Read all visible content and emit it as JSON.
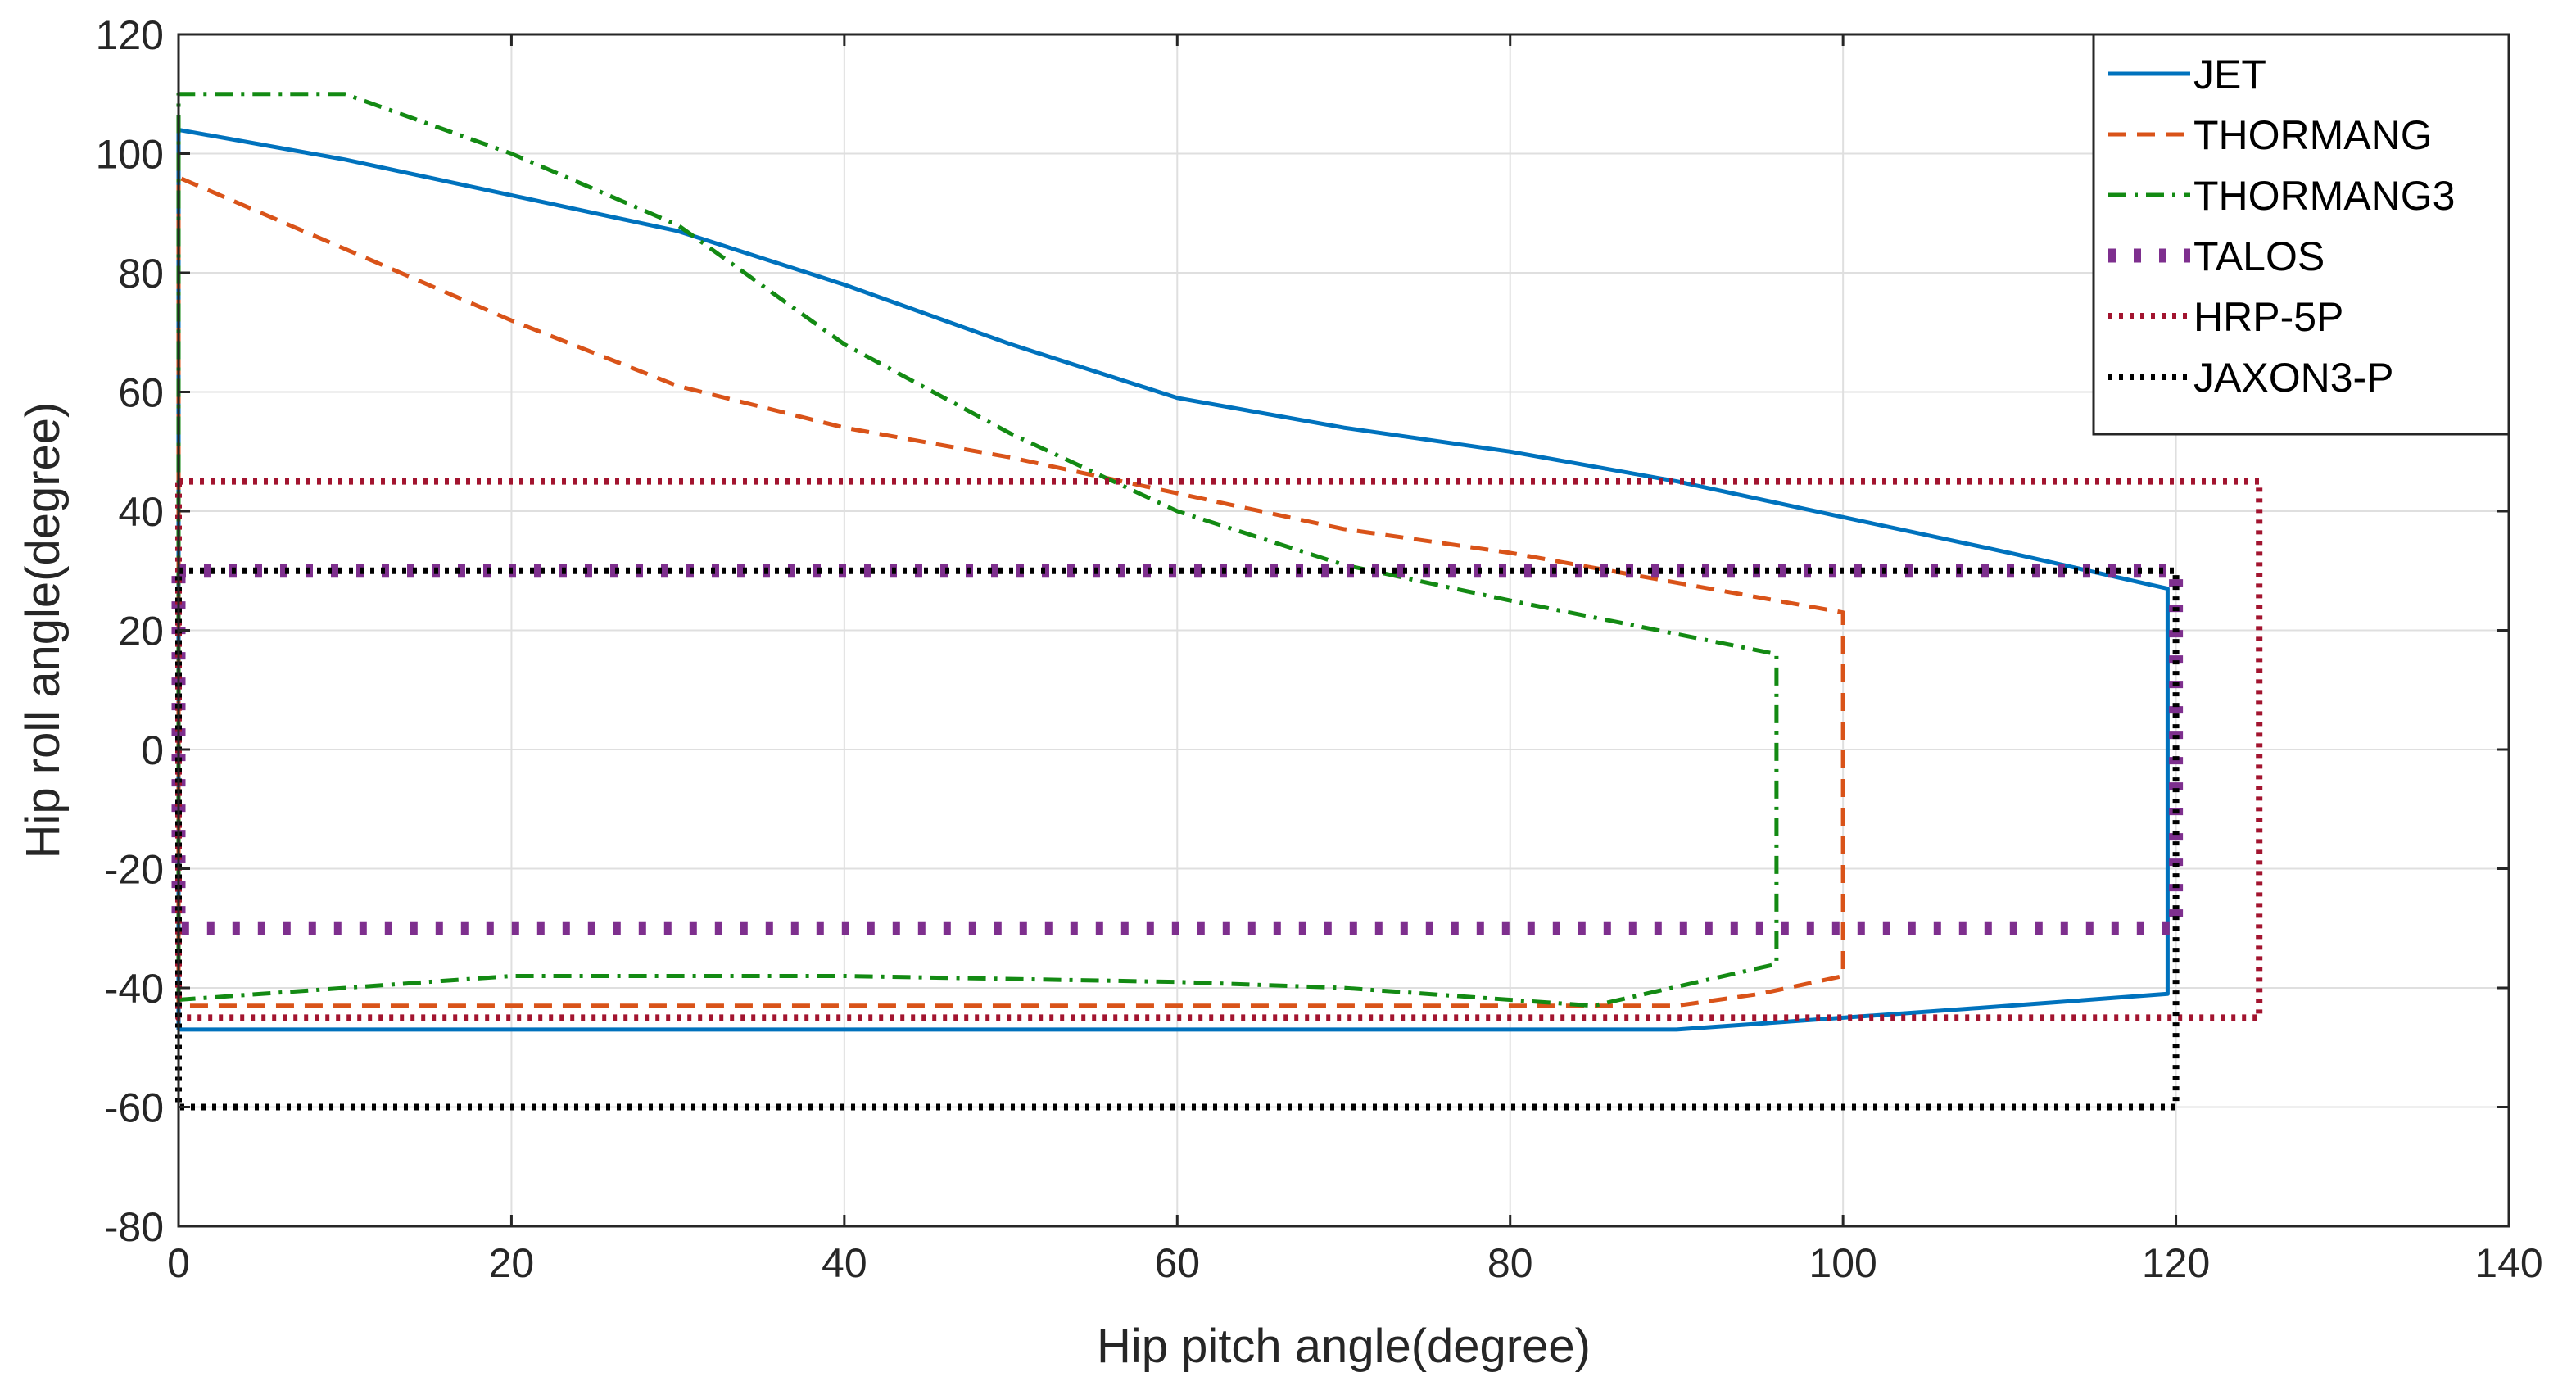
{
  "chart_data": {
    "type": "line",
    "title": "",
    "xlabel": "Hip pitch angle(degree)",
    "ylabel": "Hip roll angle(degree)",
    "xlim": [
      0,
      140
    ],
    "ylim": [
      -80,
      120
    ],
    "xticks": [
      0,
      20,
      40,
      60,
      80,
      100,
      120,
      140
    ],
    "yticks": [
      -80,
      -60,
      -40,
      -20,
      0,
      20,
      40,
      60,
      80,
      100,
      120
    ],
    "grid": true,
    "legend_position": "top-right",
    "series": [
      {
        "name": "JET",
        "color": "#0072BD",
        "style": "solid",
        "x": [
          0,
          0,
          10,
          20,
          30,
          40,
          50,
          60,
          70,
          80,
          90,
          100,
          110,
          119.5,
          119.5,
          110,
          100,
          90,
          80,
          60,
          40,
          20,
          0
        ],
        "y": [
          -47,
          104,
          99,
          93,
          87,
          78,
          68,
          59,
          54,
          50,
          45,
          39,
          33,
          27,
          -41,
          -43,
          -45,
          -47,
          -47,
          -47,
          -47,
          -47,
          -47
        ]
      },
      {
        "name": "THORMANG",
        "color": "#D95319",
        "style": "dashed",
        "x": [
          0,
          0,
          10,
          20,
          30,
          40,
          50,
          60,
          70,
          80,
          90,
          100,
          100,
          95,
          90,
          80,
          60,
          40,
          20,
          0
        ],
        "y": [
          -43,
          96,
          84,
          72,
          61,
          54,
          49,
          43,
          37,
          33,
          28,
          23,
          -38,
          -41,
          -43,
          -43,
          -43,
          -43,
          -43,
          -43
        ]
      },
      {
        "name": "THORMANG3",
        "color": "#138A13",
        "style": "dashdot",
        "x": [
          0,
          0,
          10,
          20,
          30,
          40,
          50,
          60,
          70,
          80,
          96,
          96,
          85,
          70,
          60,
          40,
          20,
          0
        ],
        "y": [
          -42,
          110,
          110,
          100,
          88,
          68,
          53,
          40,
          31,
          25,
          16,
          -36,
          -43,
          -40,
          -39,
          -38,
          -38,
          -42
        ]
      },
      {
        "name": "TALOS",
        "color": "#7E2F8E",
        "style": "dotted-thick",
        "x": [
          0,
          120,
          120,
          0,
          0
        ],
        "y": [
          30,
          30,
          -30,
          -30,
          30
        ]
      },
      {
        "name": "HRP-5P",
        "color": "#A2142F",
        "style": "dotted",
        "x": [
          0,
          125,
          125,
          0,
          0
        ],
        "y": [
          45,
          45,
          -45,
          -45,
          45
        ]
      },
      {
        "name": "JAXON3-P",
        "color": "#000000",
        "style": "dotted",
        "x": [
          0,
          120,
          120,
          0,
          0
        ],
        "y": [
          30,
          30,
          -60,
          -60,
          30
        ]
      }
    ]
  }
}
